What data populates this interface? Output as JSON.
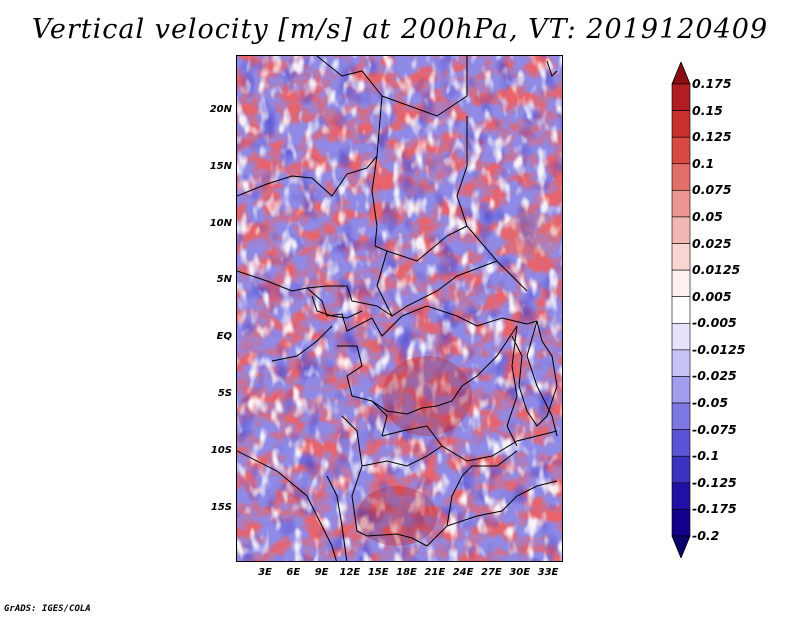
{
  "title": "Vertical velocity [m/s] at 200hPa, VT: 2019120409",
  "credit": "GrADS: IGES/COLA",
  "map": {
    "lat_labels": [
      "20N",
      "15N",
      "10N",
      "5N",
      "EQ",
      "5S",
      "10S",
      "15S"
    ],
    "lon_labels": [
      "3E",
      "6E",
      "9E",
      "12E",
      "15E",
      "18E",
      "21E",
      "24E",
      "27E",
      "30E",
      "33E"
    ]
  },
  "colorbar": {
    "labels": [
      "0.175",
      "0.15",
      "0.125",
      "0.1",
      "0.075",
      "0.05",
      "0.025",
      "0.0125",
      "0.005",
      "-0.005",
      "-0.0125",
      "-0.025",
      "-0.05",
      "-0.075",
      "-0.1",
      "-0.125",
      "-0.175",
      "-0.2"
    ],
    "colors": [
      "#8b0d14",
      "#b01d22",
      "#c8312d",
      "#d94a44",
      "#e2706a",
      "#ea958f",
      "#f2b7b2",
      "#f8d6d2",
      "#fdf0ee",
      "#ffffff",
      "#e6e4fb",
      "#c7c3f5",
      "#a29dee",
      "#7e78e3",
      "#5b54d4",
      "#3a33bd",
      "#2010a3",
      "#12008a",
      "#0a006e"
    ]
  }
}
